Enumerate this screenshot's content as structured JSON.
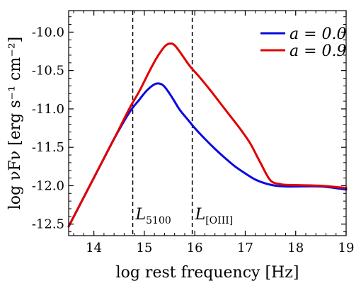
{
  "chart_data": {
    "type": "line",
    "xlabel": "log rest frequency [Hz]",
    "ylabel": "log νFν [erg s⁻¹ cm⁻²]",
    "xlim": [
      13.5,
      19.0
    ],
    "ylim": [
      -12.65,
      -9.72
    ],
    "xticks": [
      14,
      15,
      16,
      17,
      18,
      19
    ],
    "yticks": [
      -12.5,
      -12.0,
      -11.5,
      -11.0,
      -10.5,
      -10.0
    ],
    "ytick_labels": [
      "-12.5",
      "-12.0",
      "-11.5",
      "-11.0",
      "-10.5",
      "-10.0"
    ],
    "legend_position": "top-right",
    "vlines": [
      {
        "x": 14.77,
        "label": "L",
        "sub": "5100",
        "style": "dashed"
      },
      {
        "x": 15.95,
        "label": "L",
        "sub": "[OIII]",
        "style": "dashed"
      }
    ],
    "series": [
      {
        "name": "a = 0.0",
        "color": "#0a0ae0",
        "x": [
          13.5,
          13.8,
          14.1,
          14.4,
          14.7,
          14.9,
          15.05,
          15.2,
          15.3,
          15.4,
          15.55,
          15.7,
          15.85,
          16.0,
          16.2,
          16.4,
          16.6,
          16.8,
          17.0,
          17.2,
          17.4,
          17.6,
          17.8,
          18.0,
          18.5,
          19.0
        ],
        "y": [
          -12.53,
          -12.15,
          -11.77,
          -11.39,
          -11.05,
          -10.88,
          -10.76,
          -10.68,
          -10.67,
          -10.71,
          -10.85,
          -11.01,
          -11.13,
          -11.25,
          -11.39,
          -11.52,
          -11.64,
          -11.75,
          -11.84,
          -11.92,
          -11.97,
          -12.0,
          -12.01,
          -12.01,
          -12.01,
          -12.05
        ]
      },
      {
        "name": "a = 0.9",
        "color": "#e00000",
        "x": [
          13.5,
          13.8,
          14.1,
          14.4,
          14.7,
          14.9,
          15.1,
          15.25,
          15.4,
          15.5,
          15.6,
          15.75,
          15.9,
          16.1,
          16.3,
          16.5,
          16.7,
          16.9,
          17.1,
          17.3,
          17.5,
          17.7,
          17.9,
          18.5,
          19.0
        ],
        "y": [
          -12.53,
          -12.15,
          -11.77,
          -11.39,
          -11.0,
          -10.77,
          -10.51,
          -10.33,
          -10.19,
          -10.15,
          -10.17,
          -10.3,
          -10.44,
          -10.59,
          -10.75,
          -10.92,
          -11.09,
          -11.26,
          -11.45,
          -11.7,
          -11.93,
          -11.98,
          -11.99,
          -12.0,
          -12.03
        ]
      }
    ]
  }
}
